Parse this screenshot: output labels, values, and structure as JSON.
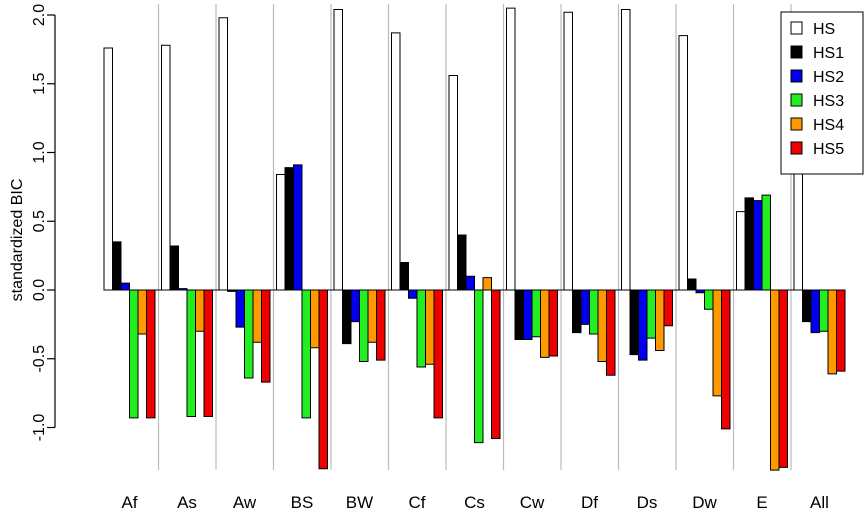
{
  "chart_data": {
    "type": "bar",
    "ylabel": "standardized BIC",
    "xlabel": "",
    "ylim": [
      -1.3,
      2.0
    ],
    "yticks": [
      -1.0,
      -0.5,
      0.0,
      0.5,
      1.0,
      1.5,
      2.0
    ],
    "ytick_labels": [
      "-1.0",
      "-0.5",
      "0.0",
      "0.5",
      "1.0",
      "1.5",
      "2.0"
    ],
    "categories": [
      "Af",
      "As",
      "Aw",
      "BS",
      "BW",
      "Cf",
      "Cs",
      "Cw",
      "Df",
      "Ds",
      "Dw",
      "E",
      "All"
    ],
    "grid": false,
    "separators": true,
    "legend_position": "top-right",
    "series": [
      {
        "name": "HS",
        "color": "#ffffff",
        "values": [
          1.76,
          1.78,
          1.98,
          0.84,
          2.04,
          1.87,
          1.56,
          2.05,
          2.02,
          2.04,
          1.85,
          0.57,
          0.86
        ]
      },
      {
        "name": "HS1",
        "color": "#000000",
        "values": [
          0.35,
          0.32,
          -0.01,
          0.89,
          -0.39,
          0.2,
          0.4,
          -0.36,
          -0.31,
          -0.47,
          0.08,
          0.67,
          -0.23
        ]
      },
      {
        "name": "HS2",
        "color": "#0000ee",
        "values": [
          0.05,
          0.01,
          -0.27,
          0.91,
          -0.23,
          -0.06,
          0.1,
          -0.36,
          -0.25,
          -0.51,
          -0.02,
          0.65,
          -0.31
        ]
      },
      {
        "name": "HS3",
        "color": "#22ee22",
        "values": [
          -0.93,
          -0.92,
          -0.64,
          -0.93,
          -0.52,
          -0.56,
          -1.11,
          -0.34,
          -0.32,
          -0.35,
          -0.14,
          0.69,
          -0.3
        ]
      },
      {
        "name": "HS4",
        "color": "#ff9900",
        "values": [
          -0.32,
          -0.3,
          -0.38,
          -0.42,
          -0.38,
          -0.54,
          0.09,
          -0.49,
          -0.52,
          -0.44,
          -0.77,
          -1.31,
          -0.61
        ]
      },
      {
        "name": "HS5",
        "color": "#ee0000",
        "values": [
          -0.93,
          -0.92,
          -0.67,
          -1.3,
          -0.51,
          -0.93,
          -1.08,
          -0.48,
          -0.62,
          -0.26,
          -1.01,
          -1.29,
          -0.59
        ]
      }
    ]
  }
}
